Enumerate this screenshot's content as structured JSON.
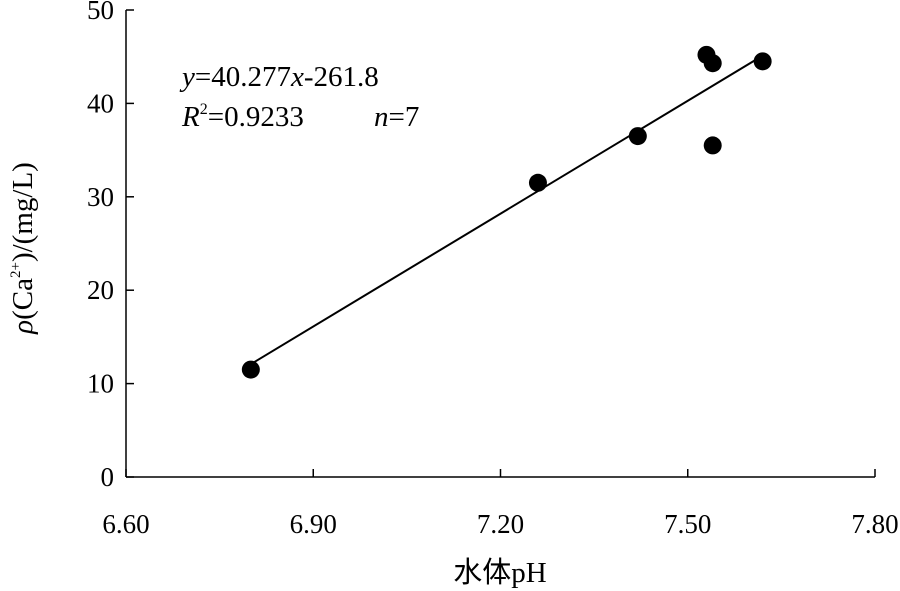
{
  "chart_data": {
    "type": "scatter",
    "title": "",
    "xlabel": "水体pH",
    "ylabel": {
      "prefix": "ρ",
      "paren_open": "(",
      "ion": "Ca",
      "charge": "2+",
      "rest": ")/(mg/L)"
    },
    "xlim": [
      6.6,
      7.8
    ],
    "ylim": [
      0,
      50
    ],
    "xticks": [
      "6.60",
      "6.90",
      "7.20",
      "7.50",
      "7.80"
    ],
    "yticks": [
      "0",
      "10",
      "20",
      "30",
      "40",
      "50"
    ],
    "grid": false,
    "series": [
      {
        "points": [
          {
            "x": 6.8,
            "y": 11.5
          },
          {
            "x": 7.26,
            "y": 31.5
          },
          {
            "x": 7.42,
            "y": 36.5
          },
          {
            "x": 7.53,
            "y": 45.2
          },
          {
            "x": 7.54,
            "y": 44.3
          },
          {
            "x": 7.54,
            "y": 35.5
          },
          {
            "x": 7.62,
            "y": 44.5
          }
        ]
      }
    ],
    "trendline": {
      "slope": 40.277,
      "intercept": -261.8,
      "x_range": [
        6.8,
        7.62
      ]
    },
    "annotation": {
      "eq_y": "y",
      "eq_mid": "=40.277",
      "eq_x": "x",
      "eq_tail": "-261.8",
      "r_letter": "R",
      "r_sup": "2",
      "r_value": "=0.9233",
      "n_letter": "n",
      "n_value": "=7"
    }
  },
  "colors": {
    "marker": "#000000",
    "line": "#000000",
    "axis": "#000000"
  }
}
